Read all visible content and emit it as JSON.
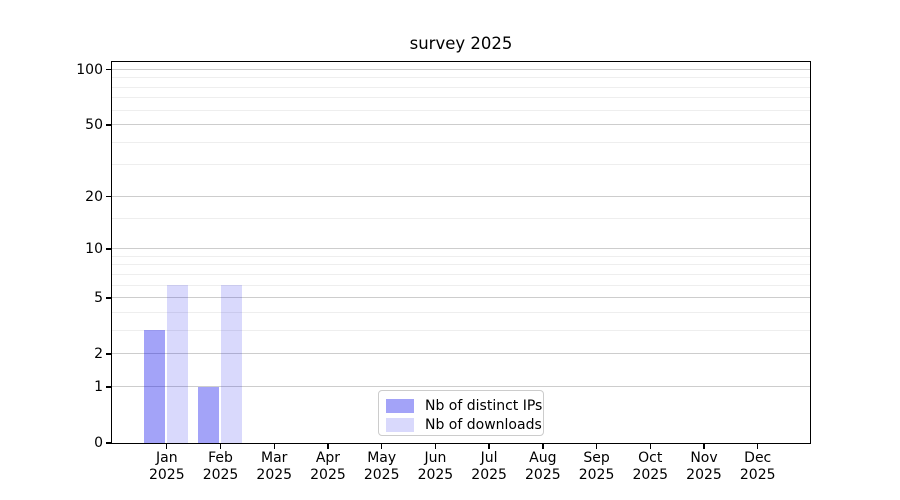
{
  "title": "survey 2025",
  "chart_data": {
    "type": "bar",
    "title": "survey 2025",
    "categories": [
      "Jan 2025",
      "Feb 2025",
      "Mar 2025",
      "Apr 2025",
      "May 2025",
      "Jun 2025",
      "Jul 2025",
      "Aug 2025",
      "Sep 2025",
      "Oct 2025",
      "Nov 2025",
      "Dec 2025"
    ],
    "series": [
      {
        "name": "Nb of distinct IPs",
        "color": "rgba(0,0,235,0.36)",
        "values": [
          3,
          1,
          0,
          0,
          0,
          0,
          0,
          0,
          0,
          0,
          0,
          0
        ]
      },
      {
        "name": "Nb of downloads",
        "color": "rgba(0,0,235,0.15)",
        "values": [
          6,
          6,
          0,
          0,
          0,
          0,
          0,
          0,
          0,
          0,
          0,
          0
        ]
      }
    ],
    "xlabel": "",
    "ylabel": "",
    "yscale": "log1p",
    "ylim": [
      0,
      110
    ],
    "yticks": [
      0,
      1,
      2,
      5,
      10,
      20,
      50,
      100
    ],
    "yticks_minor": [
      3,
      4,
      6,
      7,
      8,
      9,
      15,
      30,
      40,
      60,
      70,
      80,
      90
    ],
    "grid": true,
    "legend_position": "inside-bottom-center",
    "colors": {
      "grid_major": "#cdcdcd",
      "grid_minor": "#eeeeee",
      "axis": "#000000",
      "legend_border": "#cccccc"
    }
  }
}
